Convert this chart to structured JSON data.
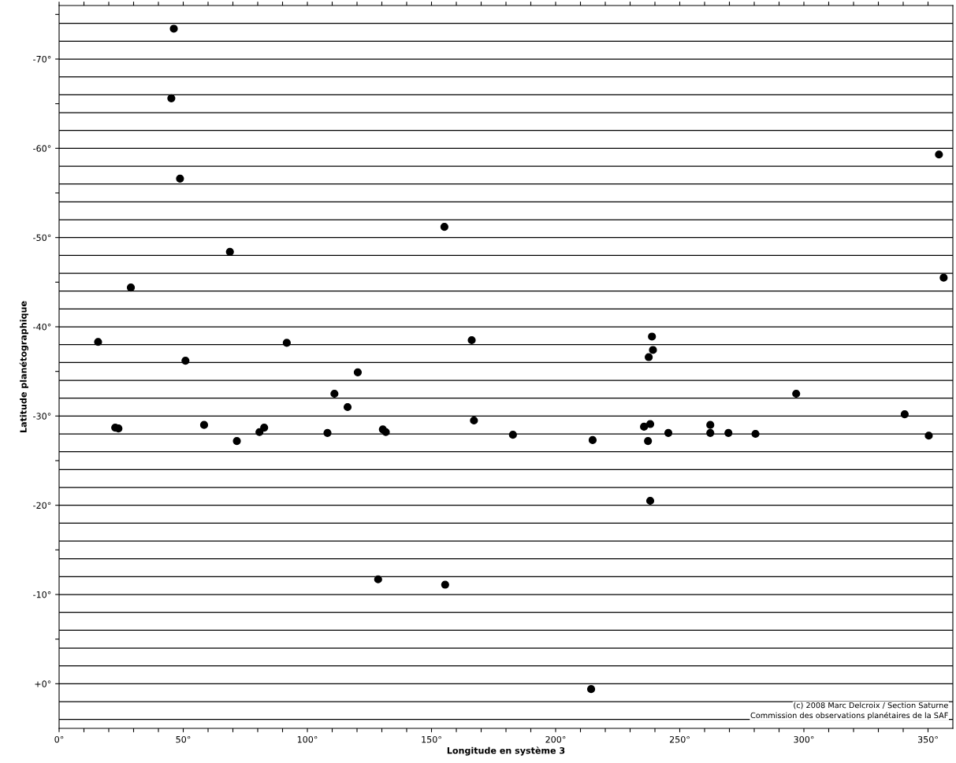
{
  "chart_data": {
    "type": "scatter",
    "xlabel": "Longitude en système 3",
    "ylabel": "Latitude planétographique",
    "x": [
      46.2,
      45.2,
      48.7,
      155.2,
      68.8,
      28.9,
      354.4,
      356.3,
      15.7,
      91.7,
      166.2,
      238.8,
      239.2,
      237.5,
      50.9,
      120.3,
      110.9,
      296.9,
      116.2,
      340.6,
      167.1,
      22.6,
      23.9,
      58.4,
      82.6,
      80.7,
      71.6,
      108.1,
      130.4,
      131.6,
      182.8,
      214.9,
      235.6,
      238.1,
      237.2,
      245.4,
      262.3,
      262.3,
      269.6,
      280.5,
      350.3,
      238.1,
      128.5,
      155.5,
      214.3
    ],
    "series": [
      {
        "color": "#000000",
        "values": [
          -73.4,
          -65.6,
          -56.6,
          -51.2,
          -48.4,
          -44.4,
          -59.3,
          -45.5,
          -38.3,
          -38.2,
          -38.5,
          -38.9,
          -37.4,
          -36.6,
          -36.2,
          -34.9,
          -32.5,
          -32.5,
          -31.0,
          -30.2,
          -29.5,
          -28.7,
          -28.6,
          -29.0,
          -28.7,
          -28.2,
          -27.2,
          -28.1,
          -28.5,
          -28.2,
          -27.9,
          -27.3,
          -28.8,
          -29.1,
          -27.2,
          -28.1,
          -29.0,
          -28.1,
          -28.1,
          -28.0,
          -27.8,
          -20.5,
          -11.7,
          -11.1,
          0.6
        ]
      }
    ],
    "marker": "circle",
    "grid": false,
    "legend": false,
    "xlim": [
      0,
      360
    ],
    "xticks": [
      {
        "value": 0,
        "label": "0°"
      },
      {
        "value": 10,
        "label": null
      },
      {
        "value": 20,
        "label": null
      },
      {
        "value": 30,
        "label": null
      },
      {
        "value": 40,
        "label": null
      },
      {
        "value": 50,
        "label": "50°"
      },
      {
        "value": 60,
        "label": null
      },
      {
        "value": 70,
        "label": null
      },
      {
        "value": 80,
        "label": null
      },
      {
        "value": 90,
        "label": null
      },
      {
        "value": 100,
        "label": "100°"
      },
      {
        "value": 110,
        "label": null
      },
      {
        "value": 120,
        "label": null
      },
      {
        "value": 130,
        "label": null
      },
      {
        "value": 140,
        "label": null
      },
      {
        "value": 150,
        "label": "150°"
      },
      {
        "value": 160,
        "label": null
      },
      {
        "value": 170,
        "label": null
      },
      {
        "value": 180,
        "label": null
      },
      {
        "value": 190,
        "label": null
      },
      {
        "value": 200,
        "label": "200°"
      },
      {
        "value": 210,
        "label": null
      },
      {
        "value": 220,
        "label": null
      },
      {
        "value": 230,
        "label": null
      },
      {
        "value": 240,
        "label": null
      },
      {
        "value": 250,
        "label": "250°"
      },
      {
        "value": 260,
        "label": null
      },
      {
        "value": 270,
        "label": null
      },
      {
        "value": 280,
        "label": null
      },
      {
        "value": 290,
        "label": null
      },
      {
        "value": 300,
        "label": "300°"
      },
      {
        "value": 310,
        "label": null
      },
      {
        "value": 320,
        "label": null
      },
      {
        "value": 330,
        "label": null
      },
      {
        "value": 340,
        "label": null
      },
      {
        "value": 350,
        "label": "350°"
      }
    ],
    "ylim": [
      5,
      -76
    ],
    "yticks": [
      {
        "value": 0,
        "label": "+0°"
      },
      {
        "value": -5,
        "label": null
      },
      {
        "value": -10,
        "label": "-10°"
      },
      {
        "value": -15,
        "label": null
      },
      {
        "value": -20,
        "label": "-20°"
      },
      {
        "value": -25,
        "label": null
      },
      {
        "value": -30,
        "label": "-30°"
      },
      {
        "value": -35,
        "label": null
      },
      {
        "value": -40,
        "label": "-40°"
      },
      {
        "value": -45,
        "label": null
      },
      {
        "value": -50,
        "label": "-50°"
      },
      {
        "value": -55,
        "label": null
      },
      {
        "value": -60,
        "label": "-60°"
      },
      {
        "value": -65,
        "label": null
      },
      {
        "value": -70,
        "label": "-70°"
      },
      {
        "value": -75,
        "label": null
      }
    ],
    "ref_lines": [
      {
        "axis": "y",
        "value": -74,
        "color": "#000000"
      },
      {
        "axis": "y",
        "value": -72,
        "color": "#000000"
      },
      {
        "axis": "y",
        "value": -70,
        "color": "#000000"
      },
      {
        "axis": "y",
        "value": -68,
        "color": "#000000"
      },
      {
        "axis": "y",
        "value": -66,
        "color": "#000000"
      },
      {
        "axis": "y",
        "value": -64,
        "color": "#000000"
      },
      {
        "axis": "y",
        "value": -62,
        "color": "#000000"
      },
      {
        "axis": "y",
        "value": -60,
        "color": "#000000"
      },
      {
        "axis": "y",
        "value": -58,
        "color": "#000000"
      },
      {
        "axis": "y",
        "value": -56,
        "color": "#000000"
      },
      {
        "axis": "y",
        "value": -54,
        "color": "#000000"
      },
      {
        "axis": "y",
        "value": -52,
        "color": "#000000"
      },
      {
        "axis": "y",
        "value": -50,
        "color": "#000000"
      },
      {
        "axis": "y",
        "value": -48,
        "color": "#000000"
      },
      {
        "axis": "y",
        "value": -46,
        "color": "#000000"
      },
      {
        "axis": "y",
        "value": -44,
        "color": "#000000"
      },
      {
        "axis": "y",
        "value": -42,
        "color": "#000000"
      },
      {
        "axis": "y",
        "value": -40,
        "color": "#000000"
      },
      {
        "axis": "y",
        "value": -38,
        "color": "#000000"
      },
      {
        "axis": "y",
        "value": -36,
        "color": "#000000"
      },
      {
        "axis": "y",
        "value": -34,
        "color": "#000000"
      },
      {
        "axis": "y",
        "value": -32,
        "color": "#000000"
      },
      {
        "axis": "y",
        "value": -30,
        "color": "#000000"
      },
      {
        "axis": "y",
        "value": -28,
        "color": "#000000"
      },
      {
        "axis": "y",
        "value": -26,
        "color": "#000000"
      },
      {
        "axis": "y",
        "value": -24,
        "color": "#000000"
      },
      {
        "axis": "y",
        "value": -22,
        "color": "#000000"
      },
      {
        "axis": "y",
        "value": -20,
        "color": "#000000"
      },
      {
        "axis": "y",
        "value": -18,
        "color": "#000000"
      },
      {
        "axis": "y",
        "value": -16,
        "color": "#000000"
      },
      {
        "axis": "y",
        "value": -14,
        "color": "#000000"
      },
      {
        "axis": "y",
        "value": -12,
        "color": "#000000"
      },
      {
        "axis": "y",
        "value": -10,
        "color": "#000000"
      },
      {
        "axis": "y",
        "value": -8,
        "color": "#000000"
      },
      {
        "axis": "y",
        "value": -6,
        "color": "#000000"
      },
      {
        "axis": "y",
        "value": -4,
        "color": "#000000"
      },
      {
        "axis": "y",
        "value": -2,
        "color": "#000000"
      },
      {
        "axis": "y",
        "value": 0,
        "color": "#000000"
      },
      {
        "axis": "y",
        "value": 2,
        "color": "#000000"
      },
      {
        "axis": "y",
        "value": 4,
        "color": "#000000"
      }
    ],
    "annotations": [
      "(c) 2008 Marc Delcroix / Section Saturne",
      "Commission des observations planétaires de la SAF"
    ]
  }
}
